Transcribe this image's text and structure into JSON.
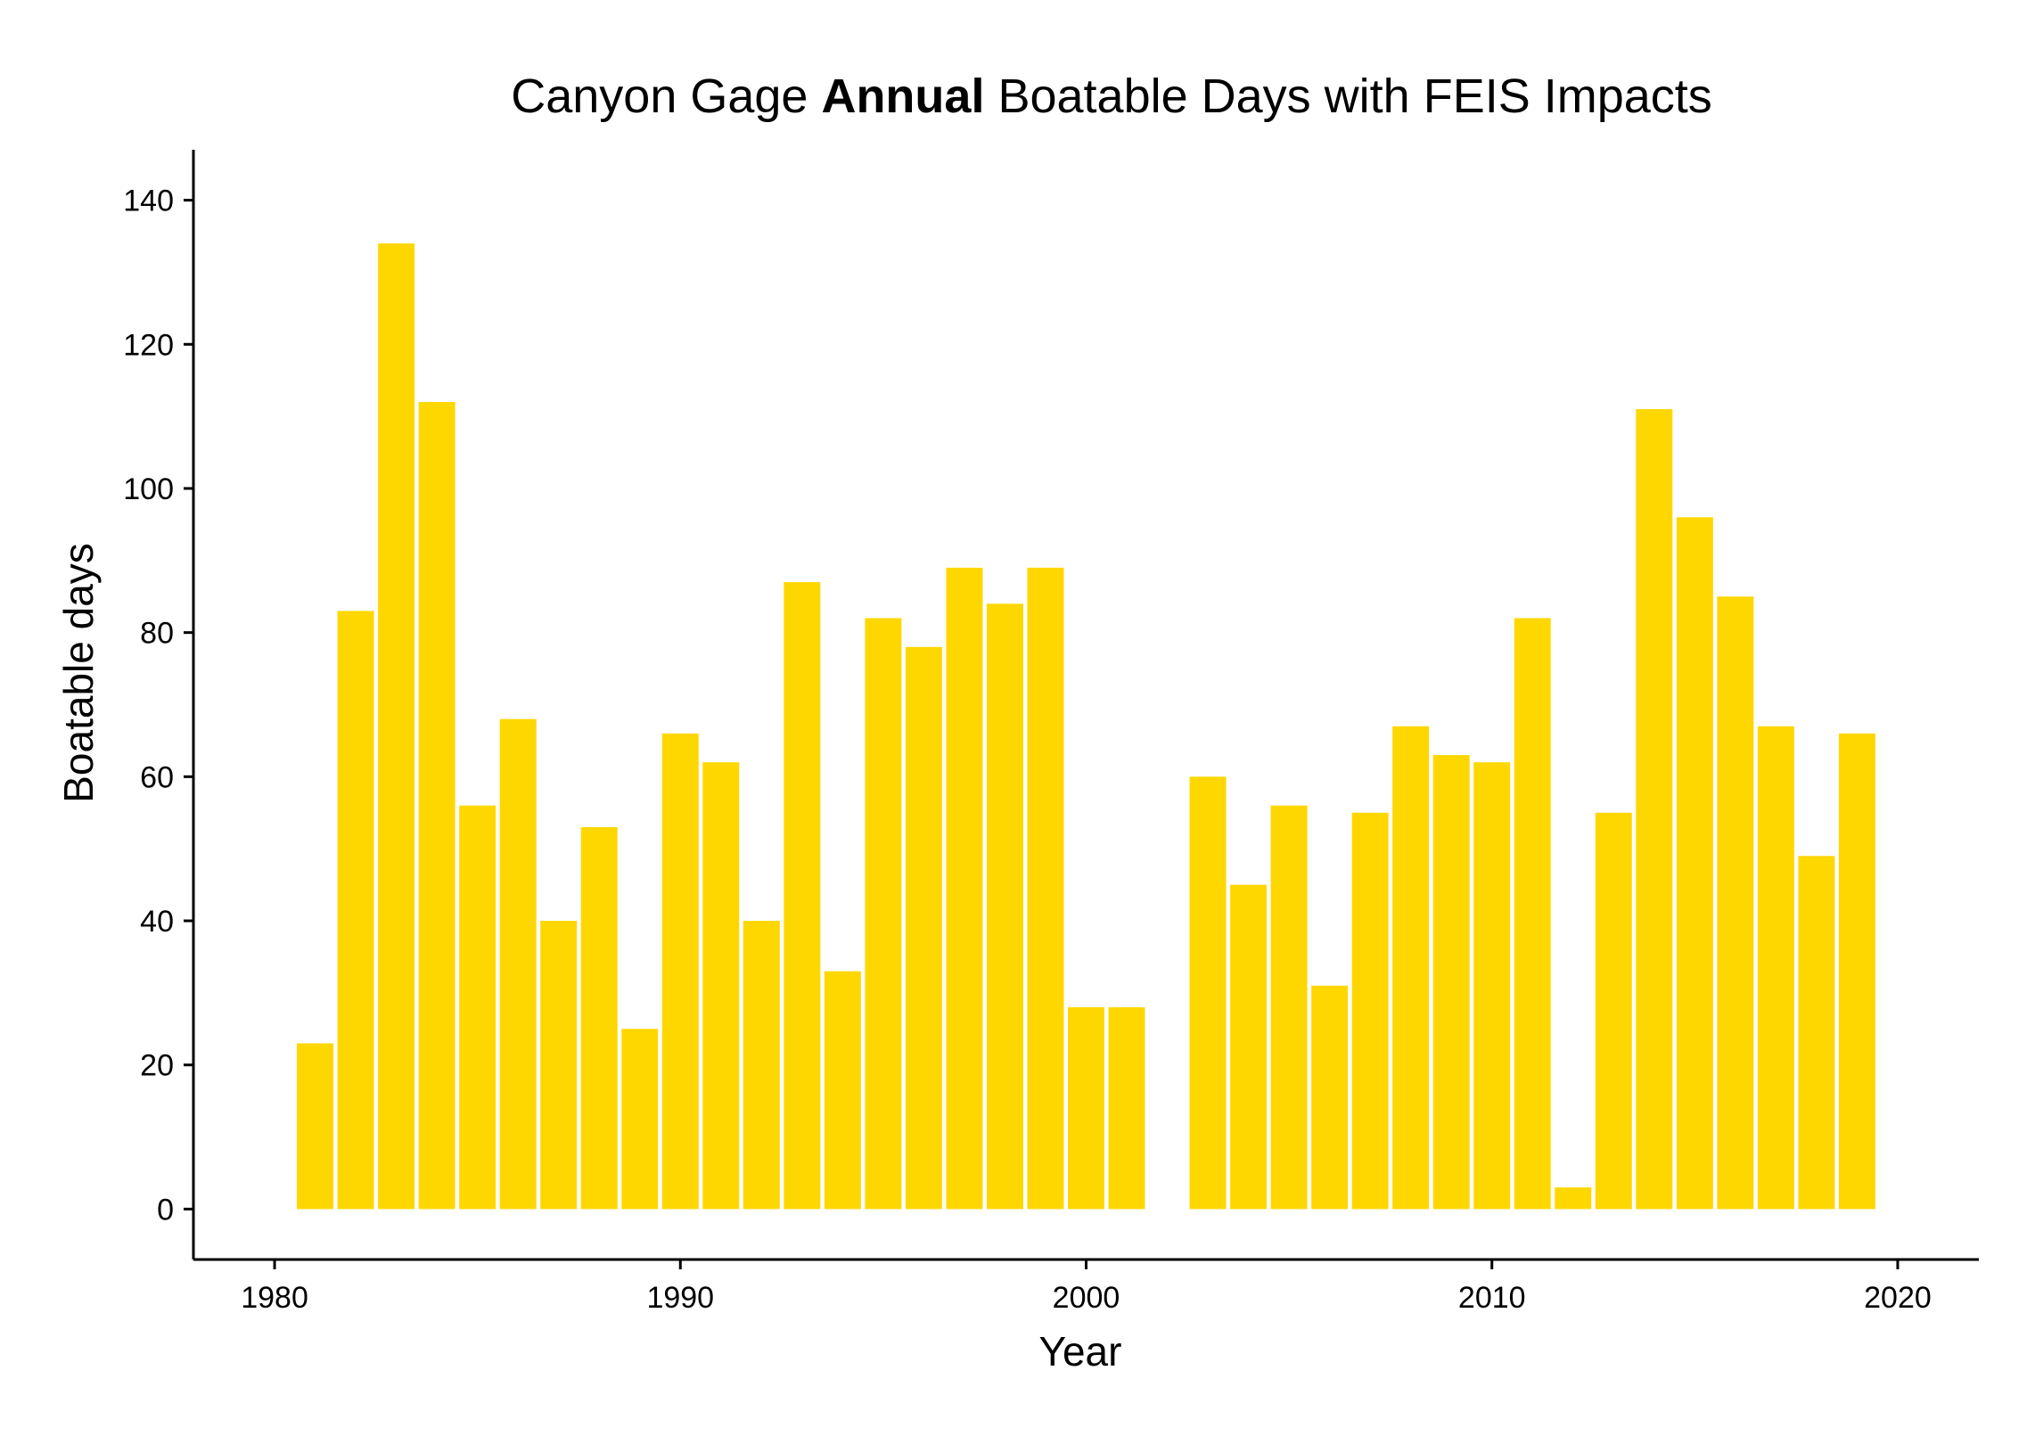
{
  "chart_data": {
    "type": "bar",
    "title": {
      "prefix": "Canyon Gage ",
      "bold": "Annual",
      "suffix": " Boatable Days with FEIS Impacts"
    },
    "xlabel": "Year",
    "ylabel": "Boatable days",
    "xlim": [
      1978,
      2022
    ],
    "ylim": [
      -7,
      147
    ],
    "xticks": [
      1980,
      1990,
      2000,
      2010,
      2020
    ],
    "yticks": [
      0,
      20,
      40,
      60,
      80,
      100,
      120,
      140
    ],
    "bar_color": "#FFD700",
    "grid": false,
    "legend": "none",
    "x": [
      1981,
      1982,
      1983,
      1984,
      1985,
      1986,
      1987,
      1988,
      1989,
      1990,
      1991,
      1992,
      1993,
      1994,
      1995,
      1996,
      1997,
      1998,
      1999,
      2000,
      2001,
      2003,
      2004,
      2005,
      2006,
      2007,
      2008,
      2009,
      2010,
      2011,
      2012,
      2013,
      2014,
      2015,
      2016,
      2017,
      2018,
      2019
    ],
    "values": [
      23,
      83,
      134,
      112,
      56,
      68,
      40,
      53,
      25,
      66,
      62,
      40,
      87,
      33,
      82,
      78,
      89,
      84,
      89,
      28,
      28,
      60,
      45,
      56,
      31,
      55,
      67,
      63,
      62,
      82,
      3,
      55,
      111,
      96,
      85,
      67,
      49,
      66
    ]
  }
}
